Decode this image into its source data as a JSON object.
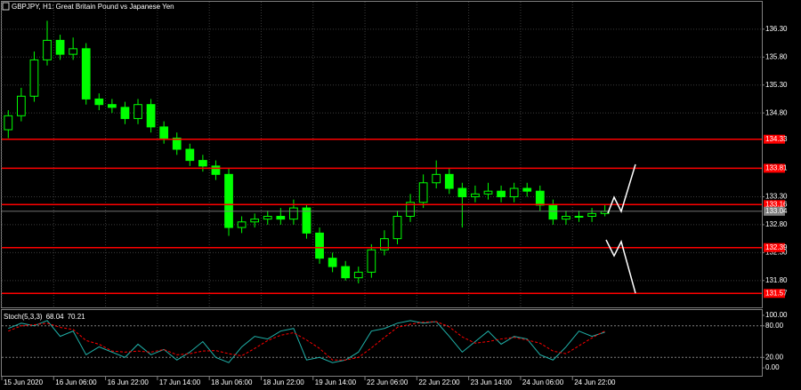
{
  "chart_data": [
    {
      "type": "candlestick",
      "title": "GBPJPY, H1:  Great Britain Pound vs Japanese Yen",
      "color": "#00ff00",
      "open": [
        134.5,
        134.75,
        135.1,
        135.75,
        136.1,
        135.85,
        135.95,
        135.05,
        134.95,
        134.9,
        134.7,
        134.95,
        134.55,
        134.35,
        134.15,
        133.95,
        133.85,
        133.7,
        132.75,
        132.85,
        132.9,
        132.95,
        132.9,
        133.1,
        132.65,
        132.2,
        132.05,
        131.85,
        131.95,
        132.35,
        132.55,
        132.95,
        133.2,
        133.55,
        133.7,
        133.45,
        133.3,
        133.35,
        133.4,
        133.3,
        133.45,
        133.4,
        133.15,
        132.9,
        132.95,
        132.95,
        133.0
      ],
      "high": [
        134.85,
        135.25,
        135.9,
        136.45,
        136.2,
        136.15,
        136.05,
        135.15,
        135.05,
        135.0,
        135.05,
        135.05,
        134.65,
        134.45,
        134.25,
        134.05,
        133.95,
        133.8,
        132.95,
        133.0,
        133.05,
        133.1,
        133.25,
        133.15,
        132.75,
        132.3,
        132.15,
        132.05,
        132.45,
        132.7,
        133.05,
        133.35,
        133.7,
        133.95,
        133.8,
        133.55,
        133.5,
        133.55,
        133.5,
        133.55,
        133.55,
        133.5,
        133.25,
        133.05,
        133.05,
        133.1,
        133.15
      ],
      "low": [
        134.35,
        134.65,
        135.0,
        135.65,
        135.75,
        135.75,
        134.95,
        134.85,
        134.8,
        134.6,
        134.6,
        134.45,
        134.25,
        134.05,
        133.85,
        133.75,
        133.6,
        132.6,
        132.65,
        132.75,
        132.8,
        132.8,
        132.8,
        132.55,
        132.1,
        131.95,
        131.8,
        131.75,
        131.85,
        132.25,
        132.45,
        132.85,
        133.1,
        133.45,
        133.35,
        132.75,
        133.2,
        133.25,
        133.2,
        133.2,
        133.3,
        133.05,
        132.8,
        132.8,
        132.85,
        132.85,
        132.95
      ],
      "close": [
        134.75,
        135.1,
        135.75,
        136.1,
        135.85,
        135.95,
        135.05,
        134.95,
        134.9,
        134.7,
        134.95,
        134.55,
        134.35,
        134.15,
        133.95,
        133.85,
        133.7,
        132.75,
        132.85,
        132.9,
        132.95,
        132.9,
        133.1,
        132.65,
        132.2,
        132.05,
        131.85,
        131.95,
        132.35,
        132.55,
        132.95,
        133.2,
        133.55,
        133.7,
        133.45,
        133.3,
        133.35,
        133.4,
        133.3,
        133.45,
        133.4,
        133.15,
        132.9,
        132.95,
        132.95,
        133.0,
        133.04
      ],
      "levels": [
        134.33,
        133.81,
        133.16,
        132.39,
        131.57
      ],
      "level_color": "#ff0000",
      "xlim": [
        0,
        58.6
      ],
      "xticks": [
        {
          "value": 0,
          "label": "15 Jun 2020"
        },
        {
          "value": 4,
          "label": "16 Jun 06:00"
        },
        {
          "value": 8,
          "label": "16 Jun 22:00"
        },
        {
          "value": 12,
          "label": "17 Jun 14:00"
        },
        {
          "value": 16,
          "label": "18 Jun 06:00"
        },
        {
          "value": 20,
          "label": "18 Jun 22:00"
        },
        {
          "value": 24,
          "label": "19 Jun 14:00"
        },
        {
          "value": 28,
          "label": "22 Jun 06:00"
        },
        {
          "value": 32,
          "label": "22 Jun 22:00"
        },
        {
          "value": 36,
          "label": "23 Jun 14:00"
        },
        {
          "value": 40,
          "label": "24 Jun 06:00"
        },
        {
          "value": 44,
          "label": "24 Jun 22:00"
        }
      ],
      "ylim": [
        131.32,
        136.79
      ],
      "yticks": [
        {
          "value": 136.3,
          "label": "136.30"
        },
        {
          "value": 135.8,
          "label": "135.80"
        },
        {
          "value": 135.3,
          "label": "135.30"
        },
        {
          "value": 134.8,
          "label": "134.80"
        },
        {
          "value": 133.3,
          "label": "133.30"
        },
        {
          "value": 132.8,
          "label": "132.80"
        },
        {
          "value": 132.3,
          "label": "132.30"
        },
        {
          "value": 131.8,
          "label": "131.80"
        }
      ],
      "grid": true
    },
    {
      "type": "line",
      "title": "Stoch(5,3,3)",
      "series": [
        {
          "color": "#20b2aa",
          "values": [
            75,
            85,
            80,
            90,
            60,
            70,
            25,
            40,
            30,
            20,
            45,
            25,
            35,
            15,
            30,
            50,
            20,
            10,
            40,
            60,
            55,
            70,
            75,
            15,
            20,
            10,
            15,
            30,
            70,
            75,
            85,
            90,
            85,
            88,
            60,
            30,
            50,
            70,
            45,
            60,
            55,
            25,
            15,
            40,
            70,
            60,
            68.04
          ]
        },
        {
          "color": "#ff0000",
          "values": [
            70,
            80,
            82,
            85,
            77,
            73,
            52,
            45,
            32,
            30,
            32,
            30,
            35,
            25,
            27,
            32,
            33,
            27,
            23,
            37,
            52,
            62,
            67,
            53,
            37,
            15,
            15,
            20,
            38,
            58,
            77,
            83,
            87,
            88,
            78,
            59,
            47,
            50,
            55,
            58,
            53,
            47,
            32,
            27,
            42,
            57,
            70.21
          ]
        }
      ],
      "xlim": [
        0,
        58.6
      ],
      "ylim": [
        -15,
        110
      ],
      "yticks": [
        {
          "value": 100,
          "label": "100.00"
        },
        {
          "value": 80,
          "label": "80.00"
        },
        {
          "value": 20,
          "label": "20.00"
        },
        {
          "value": 0,
          "label": "0.00"
        }
      ]
    }
  ]
}
